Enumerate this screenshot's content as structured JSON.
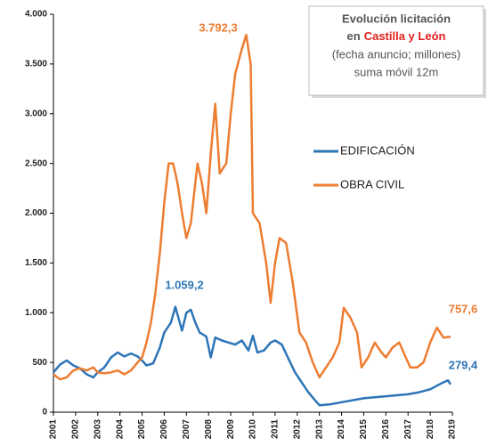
{
  "chart_data": {
    "type": "line",
    "title_line1": "Evolución licitación",
    "title_line2_prefix": "en",
    "title_highlight": "Castilla y León",
    "subtitle_line1": "(fecha anuncio; millones)",
    "subtitle_line2": "suma móvil 12m",
    "xlim": [
      2001,
      2019
    ],
    "xticks": [
      2001,
      2002,
      2003,
      2004,
      2005,
      2006,
      2007,
      2008,
      2009,
      2010,
      2011,
      2012,
      2013,
      2014,
      2015,
      2016,
      2017,
      2018,
      2019
    ],
    "ylim": [
      0,
      4000
    ],
    "yticks": [
      0,
      500,
      {
        "value": 1000,
        "label": "1.000"
      },
      {
        "value": 1500,
        "label": "1.500"
      },
      {
        "value": 2000,
        "label": "2.000"
      },
      {
        "value": 2500,
        "label": "2.500"
      },
      {
        "value": 3000,
        "label": "3.000"
      },
      {
        "value": 3500,
        "label": "3.500"
      },
      {
        "value": 4000,
        "label": "4.000"
      }
    ],
    "grid": false,
    "series": [
      {
        "name": "EDIFICACIÓN",
        "color": "#2e75b6",
        "x": [
          2001.0,
          2001.3,
          2001.6,
          2001.9,
          2002.2,
          2002.5,
          2002.8,
          2003.0,
          2003.3,
          2003.6,
          2003.9,
          2004.2,
          2004.5,
          2004.8,
          2005.0,
          2005.2,
          2005.5,
          2005.8,
          2006.0,
          2006.3,
          2006.5,
          2006.8,
          2007.0,
          2007.2,
          2007.4,
          2007.6,
          2007.9,
          2008.1,
          2008.3,
          2008.6,
          2008.9,
          2009.2,
          2009.5,
          2009.8,
          2010.0,
          2010.2,
          2010.5,
          2010.8,
          2011.0,
          2011.3,
          2011.6,
          2011.9,
          2012.2,
          2012.5,
          2012.8,
          2013.0,
          2013.5,
          2014.0,
          2014.5,
          2015.0,
          2015.5,
          2016.0,
          2016.5,
          2017.0,
          2017.5,
          2018.0,
          2018.5,
          2018.8,
          2018.92
        ],
        "values": [
          400,
          480,
          520,
          470,
          440,
          380,
          350,
          400,
          450,
          550,
          600,
          560,
          590,
          560,
          520,
          470,
          490,
          650,
          800,
          900,
          1059.2,
          820,
          1000,
          1030,
          900,
          800,
          760,
          550,
          750,
          720,
          700,
          680,
          720,
          620,
          770,
          600,
          620,
          700,
          720,
          680,
          540,
          400,
          300,
          200,
          120,
          70,
          80,
          100,
          120,
          140,
          150,
          160,
          170,
          180,
          200,
          230,
          290,
          320,
          279.4
        ]
      },
      {
        "name": "OBRA CIVIL",
        "color": "#ed7d31",
        "x": [
          2001.0,
          2001.3,
          2001.6,
          2001.9,
          2002.2,
          2002.5,
          2002.8,
          2003.0,
          2003.3,
          2003.6,
          2003.9,
          2004.2,
          2004.5,
          2004.8,
          2005.0,
          2005.2,
          2005.4,
          2005.6,
          2005.8,
          2006.0,
          2006.2,
          2006.4,
          2006.6,
          2006.8,
          2007.0,
          2007.2,
          2007.5,
          2007.7,
          2007.9,
          2008.1,
          2008.3,
          2008.5,
          2008.8,
          2009.0,
          2009.2,
          2009.5,
          2009.7,
          2009.9,
          2010.0,
          2010.3,
          2010.6,
          2010.8,
          2011.0,
          2011.2,
          2011.5,
          2011.8,
          2012.1,
          2012.4,
          2012.7,
          2013.0,
          2013.3,
          2013.6,
          2013.9,
          2014.1,
          2014.4,
          2014.7,
          2014.9,
          2015.2,
          2015.5,
          2015.8,
          2016.0,
          2016.3,
          2016.6,
          2016.9,
          2017.1,
          2017.4,
          2017.7,
          2018.0,
          2018.3,
          2018.6,
          2018.92
        ],
        "values": [
          380,
          330,
          350,
          420,
          440,
          420,
          450,
          400,
          390,
          400,
          420,
          380,
          420,
          500,
          550,
          700,
          900,
          1200,
          1600,
          2100,
          2500,
          2500,
          2300,
          2000,
          1750,
          1900,
          2500,
          2300,
          2000,
          2600,
          3100,
          2400,
          2500,
          3000,
          3400,
          3650,
          3792.3,
          3500,
          2000,
          1900,
          1500,
          1100,
          1500,
          1750,
          1700,
          1300,
          800,
          700,
          500,
          350,
          450,
          550,
          700,
          1050,
          950,
          800,
          450,
          550,
          700,
          600,
          550,
          650,
          700,
          550,
          450,
          450,
          500,
          700,
          850,
          750,
          757.6
        ]
      }
    ],
    "annotations": [
      "3.792,3",
      "1.059,2",
      "757,6",
      "279,4"
    ]
  }
}
